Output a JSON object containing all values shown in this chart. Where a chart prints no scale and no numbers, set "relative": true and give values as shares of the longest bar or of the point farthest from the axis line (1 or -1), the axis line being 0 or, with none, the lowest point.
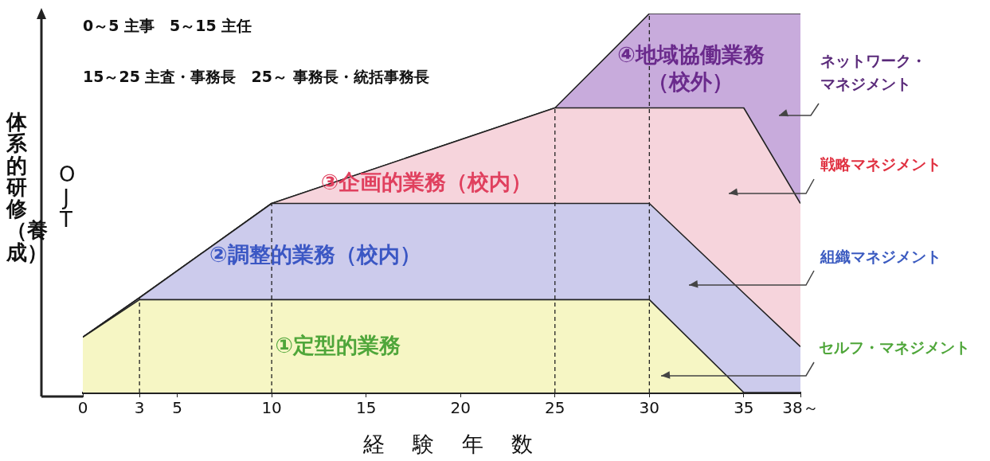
{
  "chart_data": {
    "type": "area",
    "stacked": true,
    "relative": true,
    "xlabel": "経験年数",
    "ylabel": "体系的研修（養成）",
    "x": [
      0,
      3,
      10,
      25,
      30,
      35,
      38
    ],
    "xlim": [
      0,
      38
    ],
    "xticks": [
      0,
      3,
      5,
      10,
      15,
      20,
      25,
      30,
      35,
      {
        "value": 38,
        "label": "38～"
      }
    ],
    "series": [
      {
        "name": "①定型的業務",
        "color": "#f6f6c4",
        "values": [
          0.146,
          0.245,
          0.245,
          0.245,
          0.245,
          0,
          0
        ]
      },
      {
        "name": "②調整的業務（校内）",
        "color": "#cccbec",
        "values": [
          0,
          0.005,
          0.254,
          0.254,
          0.254,
          0.262,
          0.121
        ]
      },
      {
        "name": "③企画的業務（校内）",
        "color": "#f6d4dc",
        "values": [
          0,
          0,
          0,
          0.252,
          0.252,
          0.489,
          0.378
        ]
      },
      {
        "name": "④地域協働業務（校外）",
        "color": "#c8abdc",
        "values": [
          0,
          0,
          0,
          0,
          0.249,
          0.249,
          0.501
        ]
      }
    ],
    "ref_lines": [
      {
        "axis": "x",
        "value": 3,
        "line_style": "dashed"
      },
      {
        "axis": "x",
        "value": 10,
        "line_style": "dashed"
      },
      {
        "axis": "x",
        "value": 25,
        "line_style": "dashed"
      },
      {
        "axis": "x",
        "value": 30,
        "line_style": "dashed"
      }
    ],
    "annotations": [
      "0～5 主事　5～15 主任",
      "15～25 主査・事務長　25～ 事務長・統括事務長",
      "OJT",
      "ネットワーク・マネジメント",
      "戦略マネジメント",
      "組織マネジメント",
      "セルフ・マネジメント"
    ],
    "marker": "none",
    "legend": false
  }
}
